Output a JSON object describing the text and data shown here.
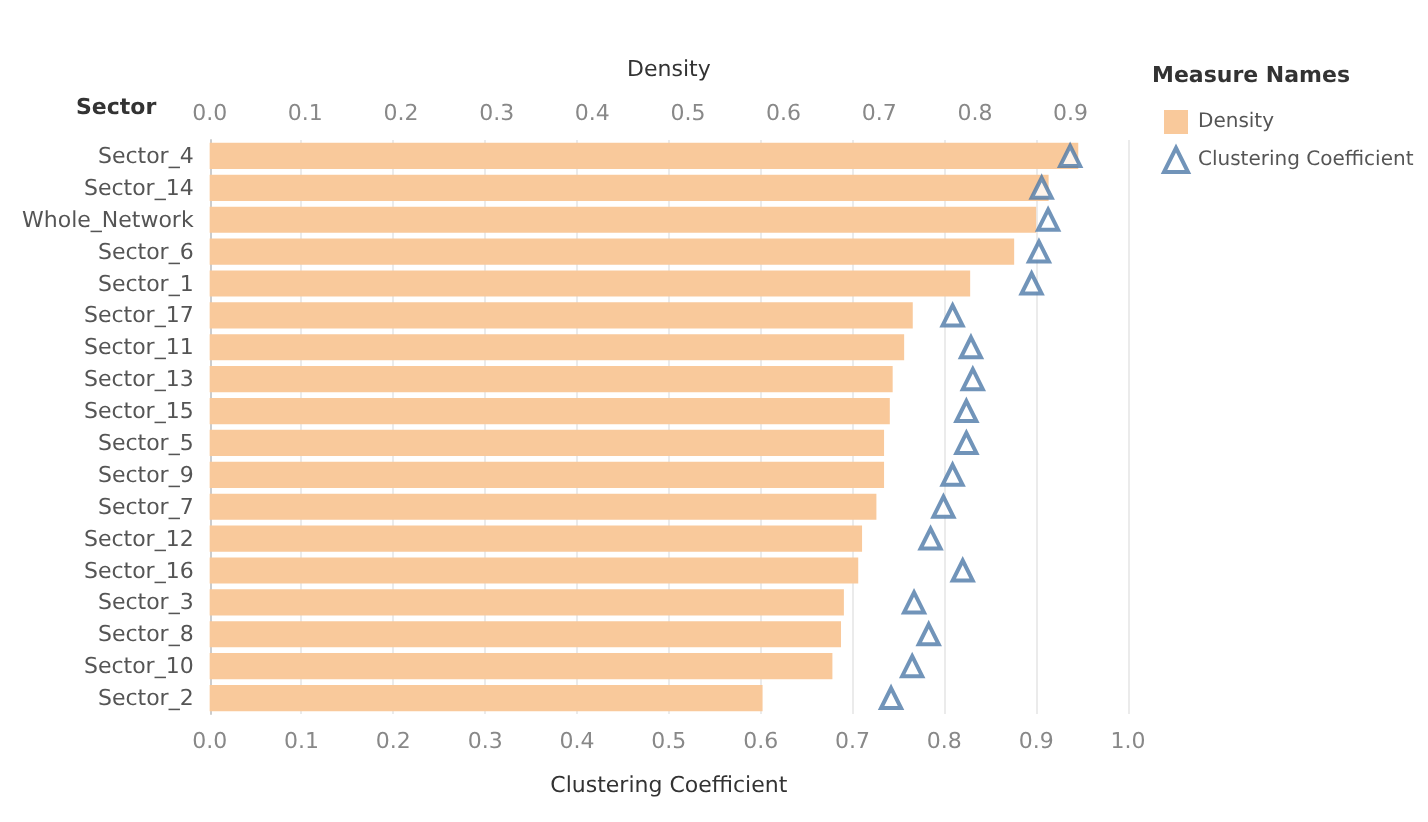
{
  "chart_data": {
    "type": "bar",
    "orientation": "horizontal",
    "ylabel": "Sector",
    "xlabel": "Clustering Coefficient",
    "x2label": "Density",
    "legend_title": "Measure Names",
    "legend": "right",
    "grid": "x",
    "categories": [
      "Sector_4",
      "Sector_14",
      "Whole_Network",
      "Sector_6",
      "Sector_1",
      "Sector_17",
      "Sector_11",
      "Sector_13",
      "Sector_15",
      "Sector_5",
      "Sector_9",
      "Sector_7",
      "Sector_12",
      "Sector_16",
      "Sector_3",
      "Sector_8",
      "Sector_10",
      "Sector_2"
    ],
    "xlim": [
      0,
      1
    ],
    "xticks": [
      {
        "value": 0,
        "label": "0.0"
      },
      0.1,
      0.2,
      0.3,
      0.4,
      0.5,
      0.6,
      0.7,
      0.8,
      0.9,
      {
        "value": 1,
        "label": "1.0"
      }
    ],
    "x2lim": [
      0,
      0.96
    ],
    "x2ticks": [
      {
        "value": 0,
        "label": "0.0"
      },
      0.1,
      0.2,
      0.3,
      0.4,
      0.5,
      0.6,
      0.7,
      0.8,
      0.9
    ],
    "series": [
      {
        "name": "Density",
        "axis": "x2",
        "color": "#f9c99b",
        "values": [
          0.908,
          0.877,
          0.864,
          0.841,
          0.795,
          0.735,
          0.726,
          0.714,
          0.711,
          0.705,
          0.705,
          0.697,
          0.682,
          0.678,
          0.663,
          0.66,
          0.651,
          0.578
        ]
      },
      {
        "name": "Clustering Coefficient",
        "type": "scatter",
        "marker": "triangle",
        "color": "#4e79a7",
        "values": [
          0.937,
          0.906,
          0.913,
          0.903,
          0.895,
          0.809,
          0.829,
          0.831,
          0.824,
          0.824,
          0.809,
          0.799,
          0.785,
          0.82,
          0.767,
          0.783,
          0.765,
          0.742
        ]
      }
    ]
  }
}
